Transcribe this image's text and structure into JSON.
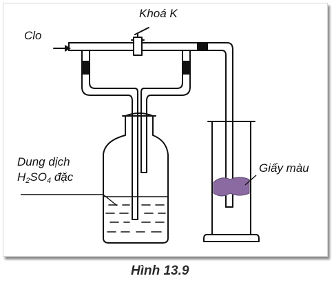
{
  "figure": {
    "caption": "Hình 13.9"
  },
  "labels": {
    "gas_inlet": "Clo",
    "valve": "Khoá K",
    "solution_line1": "Dung dịch",
    "solution_formula_h": "H",
    "solution_formula_2": "2",
    "solution_formula_so": "SO",
    "solution_formula_4": "4",
    "solution_formula_rest": " đặc",
    "colored_paper": "Giấy màu"
  },
  "colors": {
    "ink": "#111111",
    "paper_stain": "#8a6aa0",
    "panel_shadow": "#8c8c8c"
  }
}
